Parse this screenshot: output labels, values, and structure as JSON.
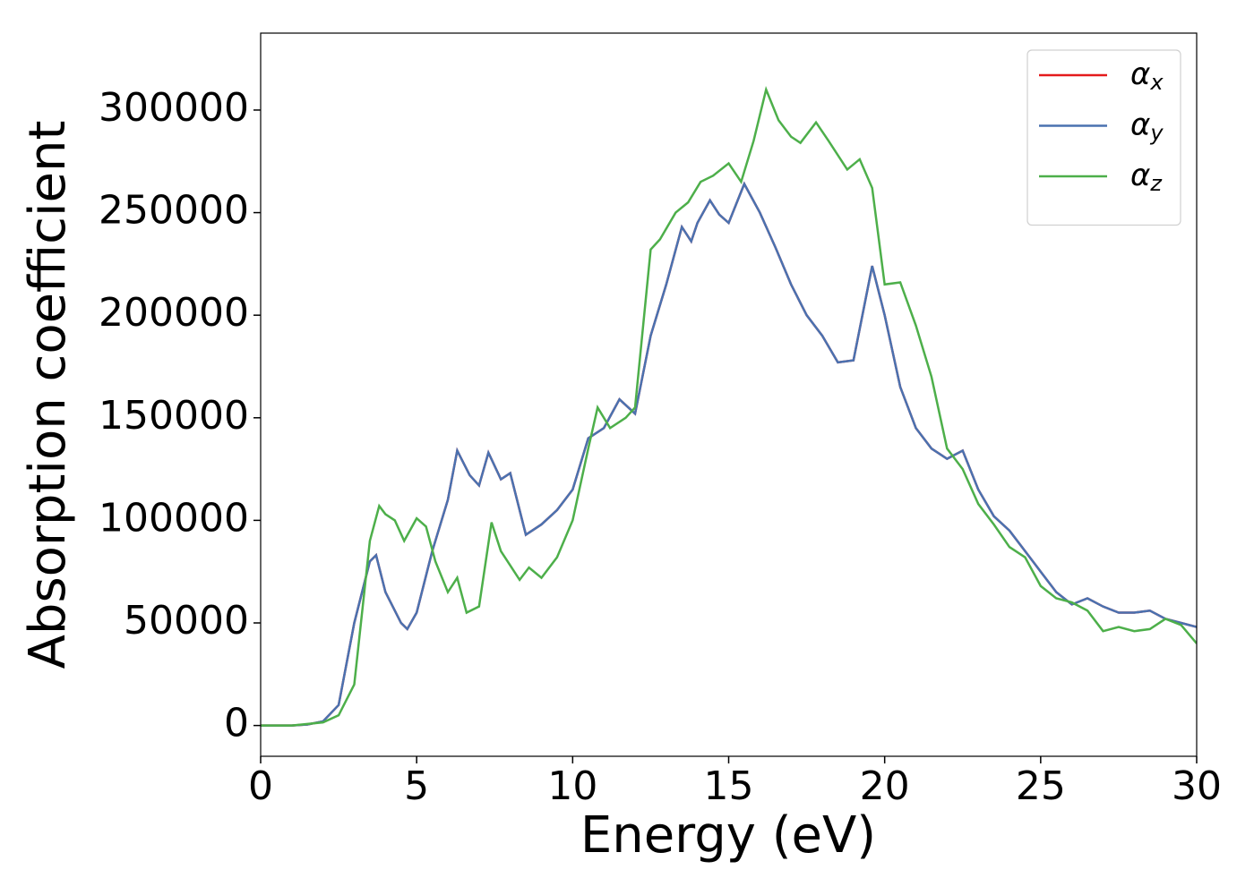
{
  "chart_data": {
    "type": "line",
    "x_label": "Energy (eV)",
    "y_label": "Absorption coefficient",
    "xlim": [
      0,
      30
    ],
    "xticks": [
      0,
      5,
      10,
      15,
      20,
      25,
      30
    ],
    "ylim": [
      -15000,
      337500
    ],
    "yticks": [
      0,
      50000,
      100000,
      150000,
      200000,
      250000,
      300000
    ],
    "grid": false,
    "legend": "upper right",
    "series": [
      {
        "name": "αx",
        "color": "#e41a1c",
        "x": [
          0,
          0.5,
          1,
          1.5,
          2,
          2.5,
          3,
          3.5,
          3.7,
          4,
          4.5,
          4.7,
          5,
          5.5,
          6,
          6.3,
          6.7,
          7,
          7.3,
          7.7,
          8,
          8.5,
          9,
          9.5,
          10,
          10.5,
          11,
          11.5,
          12,
          12.5,
          13,
          13.5,
          13.8,
          14,
          14.4,
          14.7,
          15,
          15.5,
          16,
          16.5,
          17,
          17.5,
          18,
          18.5,
          19,
          19.6,
          20,
          20.5,
          21,
          21.5,
          22,
          22.5,
          23,
          23.5,
          24,
          24.5,
          25,
          25.5,
          26,
          26.5,
          27,
          27.5,
          28,
          28.5,
          29,
          29.5,
          30
        ],
        "values": [
          0,
          0,
          0,
          500,
          2000,
          10000,
          50000,
          80000,
          83000,
          65000,
          50000,
          47000,
          55000,
          85000,
          110000,
          134000,
          122000,
          117000,
          133000,
          120000,
          123000,
          93000,
          98000,
          105000,
          115000,
          140000,
          145000,
          159000,
          152000,
          190000,
          215000,
          243000,
          236000,
          245000,
          256000,
          249000,
          245000,
          264000,
          250000,
          233000,
          215000,
          200000,
          190000,
          177000,
          178000,
          224000,
          200000,
          165000,
          145000,
          135000,
          130000,
          134000,
          115000,
          102000,
          95000,
          85000,
          75000,
          65000,
          59000,
          62000,
          58000,
          55000,
          55000,
          56000,
          52000,
          50000,
          48000
        ]
      },
      {
        "name": "αy",
        "color": "#4a72b0",
        "x": [
          0,
          0.5,
          1,
          1.5,
          2,
          2.5,
          3,
          3.5,
          3.7,
          4,
          4.5,
          4.7,
          5,
          5.5,
          6,
          6.3,
          6.7,
          7,
          7.3,
          7.7,
          8,
          8.5,
          9,
          9.5,
          10,
          10.5,
          11,
          11.5,
          12,
          12.5,
          13,
          13.5,
          13.8,
          14,
          14.4,
          14.7,
          15,
          15.5,
          16,
          16.5,
          17,
          17.5,
          18,
          18.5,
          19,
          19.6,
          20,
          20.5,
          21,
          21.5,
          22,
          22.5,
          23,
          23.5,
          24,
          24.5,
          25,
          25.5,
          26,
          26.5,
          27,
          27.5,
          28,
          28.5,
          29,
          29.5,
          30
        ],
        "values": [
          0,
          0,
          0,
          500,
          2000,
          10000,
          50000,
          80000,
          83000,
          65000,
          50000,
          47000,
          55000,
          85000,
          110000,
          134000,
          122000,
          117000,
          133000,
          120000,
          123000,
          93000,
          98000,
          105000,
          115000,
          140000,
          145000,
          159000,
          152000,
          190000,
          215000,
          243000,
          236000,
          245000,
          256000,
          249000,
          245000,
          264000,
          250000,
          233000,
          215000,
          200000,
          190000,
          177000,
          178000,
          224000,
          200000,
          165000,
          145000,
          135000,
          130000,
          134000,
          115000,
          102000,
          95000,
          85000,
          75000,
          65000,
          59000,
          62000,
          58000,
          55000,
          55000,
          56000,
          52000,
          50000,
          48000
        ]
      },
      {
        "name": "αz",
        "color": "#4daf4a",
        "x": [
          0,
          1,
          2,
          2.5,
          3,
          3.5,
          3.8,
          4,
          4.3,
          4.6,
          5,
          5.3,
          5.6,
          6,
          6.3,
          6.6,
          7,
          7.4,
          7.7,
          8,
          8.3,
          8.6,
          9,
          9.5,
          10,
          10.5,
          10.8,
          11.2,
          11.7,
          12,
          12.5,
          12.8,
          13.3,
          13.7,
          14.1,
          14.5,
          15,
          15.4,
          15.8,
          16.2,
          16.6,
          17,
          17.3,
          17.8,
          18.2,
          18.8,
          19.2,
          19.6,
          20,
          20.5,
          21,
          21.5,
          22,
          22.5,
          23,
          23.5,
          24,
          24.5,
          25,
          25.5,
          26,
          26.5,
          27,
          27.5,
          28,
          28.5,
          29,
          29.5,
          30
        ],
        "values": [
          0,
          0,
          1500,
          5000,
          20000,
          90000,
          107000,
          103000,
          100000,
          90000,
          101000,
          97000,
          80000,
          65000,
          72000,
          55000,
          58000,
          99000,
          85000,
          78000,
          71000,
          77000,
          72000,
          82000,
          100000,
          135000,
          155000,
          145000,
          150000,
          155000,
          232000,
          237000,
          250000,
          255000,
          265000,
          268000,
          274000,
          265000,
          285000,
          310000,
          295000,
          287000,
          284000,
          294000,
          285000,
          271000,
          276000,
          262000,
          215000,
          216000,
          195000,
          170000,
          135000,
          125000,
          108000,
          98000,
          87000,
          82000,
          68000,
          62000,
          60000,
          56000,
          46000,
          48000,
          46000,
          47000,
          52000,
          49000,
          40000
        ]
      }
    ]
  }
}
